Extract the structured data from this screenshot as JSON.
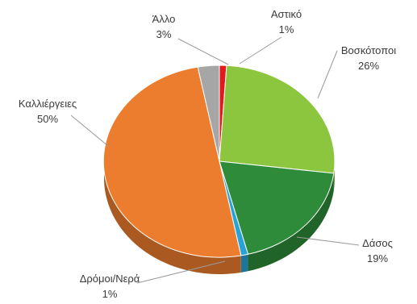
{
  "chart_data": {
    "type": "pie",
    "style": "3d-tilted",
    "title": "",
    "legend": "none",
    "slices": [
      {
        "label": "Αστικό",
        "value": 1,
        "percent_label": "1%",
        "color": "#e31a1c"
      },
      {
        "label": "Βοσκότοποι",
        "value": 26,
        "percent_label": "26%",
        "color": "#8cc63f"
      },
      {
        "label": "Δάσος",
        "value": 19,
        "percent_label": "19%",
        "color": "#2e8b3a"
      },
      {
        "label": "Δρόμοι/Νερά",
        "value": 1,
        "percent_label": "1%",
        "color": "#29a3d6"
      },
      {
        "label": "Καλλιέργειες",
        "value": 50,
        "percent_label": "50%",
        "color": "#ec7d2e"
      },
      {
        "label": "Άλλο",
        "value": 3,
        "percent_label": "3%",
        "color": "#a6a6a6"
      }
    ]
  }
}
